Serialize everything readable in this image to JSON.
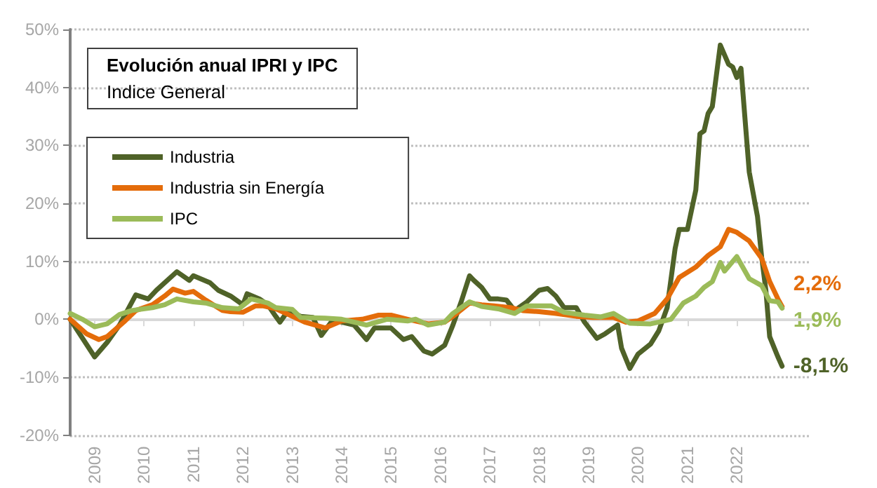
{
  "chart_data": {
    "type": "line",
    "title": "Evolución anual IPRI y IPC",
    "subtitle": "Indice General",
    "xlim": [
      "2009-01",
      "2024-01"
    ],
    "xticks": [
      {
        "value": "2009-07",
        "label": "2009"
      },
      {
        "value": "2010-07",
        "label": "2010"
      },
      {
        "value": "2011-07",
        "label": "2011"
      },
      {
        "value": "2012-07",
        "label": "2012"
      },
      {
        "value": "2013-07",
        "label": "2013"
      },
      {
        "value": "2014-07",
        "label": "2014"
      },
      {
        "value": "2015-07",
        "label": "2015"
      },
      {
        "value": "2016-07",
        "label": "2016"
      },
      {
        "value": "2017-07",
        "label": "2017"
      },
      {
        "value": "2018-07",
        "label": "2018"
      },
      {
        "value": "2019-07",
        "label": "2019"
      },
      {
        "value": "2020-07",
        "label": "2020"
      },
      {
        "value": "2021-07",
        "label": "2021"
      },
      {
        "value": "2022-07",
        "label": "2022"
      }
    ],
    "ylim": [
      -20,
      50
    ],
    "yticks": [
      {
        "value": -20,
        "label": "-20%"
      },
      {
        "value": -10,
        "label": "-10%"
      },
      {
        "value": 0,
        "label": "0%"
      },
      {
        "value": 10,
        "label": "10%"
      },
      {
        "value": 20,
        "label": "20%"
      },
      {
        "value": 30,
        "label": "30%"
      },
      {
        "value": 40,
        "label": "40%"
      },
      {
        "value": 50,
        "label": "50%"
      }
    ],
    "grid": "y",
    "legend": "top left",
    "marker": "none",
    "line_style": "solid",
    "series": [
      {
        "name": "Industria",
        "color": "#4f6228",
        "x": [
          "2009-01",
          "2009-07",
          "2009-10",
          "2010-01",
          "2010-05",
          "2010-08",
          "2010-10",
          "2011-03",
          "2011-06",
          "2011-07",
          "2011-11",
          "2012-01",
          "2012-04",
          "2012-07",
          "2012-08",
          "2012-11",
          "2013-01",
          "2013-03",
          "2013-04",
          "2013-06",
          "2013-09",
          "2013-12",
          "2014-02",
          "2014-05",
          "2014-07",
          "2014-10",
          "2015-01",
          "2015-03",
          "2015-05",
          "2015-07",
          "2015-10",
          "2015-12",
          "2016-03",
          "2016-05",
          "2016-08",
          "2016-10",
          "2016-12",
          "2017-02",
          "2017-03",
          "2017-05",
          "2017-07",
          "2017-09",
          "2017-11",
          "2018-01",
          "2018-04",
          "2018-07",
          "2018-09",
          "2018-11",
          "2019-01",
          "2019-04",
          "2019-06",
          "2019-09",
          "2019-11",
          "2020-02",
          "2020-03",
          "2020-05",
          "2020-07",
          "2020-10",
          "2020-12",
          "2021-02",
          "2021-04",
          "2021-05",
          "2021-07",
          "2021-09",
          "2021-10",
          "2021-11",
          "2021-12",
          "2022-01",
          "2022-03",
          "2022-05",
          "2022-06",
          "2022-07",
          "2022-08",
          "2022-10",
          "2022-12",
          "2023-01",
          "2023-02",
          "2023-03",
          "2023-05",
          "2023-06"
        ],
        "values": [
          0,
          -6.5,
          -4,
          -1,
          4.2,
          3.5,
          5,
          8.2,
          6.7,
          7.5,
          6.3,
          5,
          4,
          2.5,
          4.4,
          3.5,
          2.5,
          0.5,
          -0.5,
          1.5,
          0.5,
          0.3,
          -2.8,
          0,
          -0.5,
          -1,
          -3.5,
          -1.5,
          -1.5,
          -1.5,
          -3.5,
          -3,
          -5.5,
          -6,
          -4.5,
          -1,
          3,
          7.5,
          6.8,
          5.5,
          3.5,
          3.5,
          3.3,
          1.5,
          3,
          5,
          5.3,
          4,
          2,
          2,
          -0.5,
          -3.3,
          -2.5,
          -1,
          -5,
          -8.5,
          -6,
          -4.3,
          -2,
          2,
          12.2,
          15.5,
          15.5,
          22.3,
          32,
          32.5,
          35.5,
          36.7,
          47.3,
          44,
          43.5,
          41.7,
          43.3,
          25.4,
          17.7,
          10.7,
          5,
          -3,
          -6.5,
          -8.1
        ]
      },
      {
        "name": "Industria sin Energía",
        "color": "#e46c0a",
        "x": [
          "2009-01",
          "2009-05",
          "2009-08",
          "2009-10",
          "2010-02",
          "2010-05",
          "2010-09",
          "2010-12",
          "2011-02",
          "2011-05",
          "2011-07",
          "2011-10",
          "2012-02",
          "2012-04",
          "2012-07",
          "2012-10",
          "2012-12",
          "2013-03",
          "2013-07",
          "2013-10",
          "2014-03",
          "2014-07",
          "2014-12",
          "2015-04",
          "2015-07",
          "2015-11",
          "2016-04",
          "2016-08",
          "2016-10",
          "2017-02",
          "2017-05",
          "2017-08",
          "2017-12",
          "2018-03",
          "2018-07",
          "2018-11",
          "2019-04",
          "2019-08",
          "2020-01",
          "2020-04",
          "2020-07",
          "2020-11",
          "2021-02",
          "2021-05",
          "2021-09",
          "2021-12",
          "2022-03",
          "2022-05",
          "2022-07",
          "2022-10",
          "2023-01",
          "2023-03",
          "2023-05",
          "2023-06"
        ],
        "values": [
          0,
          -2.5,
          -3.5,
          -3,
          -0.5,
          1.5,
          2.5,
          4,
          5.2,
          4.5,
          4.8,
          3.3,
          1.5,
          1.3,
          1.2,
          2.3,
          2.3,
          1.8,
          0.5,
          -0.5,
          -1.5,
          -0.3,
          0,
          0.7,
          0.7,
          0,
          -0.8,
          -0.5,
          0.5,
          2.8,
          2.5,
          2.3,
          2,
          1.5,
          1.3,
          1,
          0.5,
          0.3,
          0.3,
          -0.5,
          -0.3,
          1,
          3.5,
          7.2,
          9,
          11,
          12.5,
          15.5,
          15,
          13.5,
          10.5,
          6.5,
          3.5,
          2.2
        ]
      },
      {
        "name": "IPC",
        "color": "#9bbb59",
        "x": [
          "2009-01",
          "2009-04",
          "2009-07",
          "2009-10",
          "2010-01",
          "2010-04",
          "2010-09",
          "2010-12",
          "2011-03",
          "2011-07",
          "2011-10",
          "2012-02",
          "2012-06",
          "2012-09",
          "2013-01",
          "2013-03",
          "2013-07",
          "2013-09",
          "2014-03",
          "2014-07",
          "2015-01",
          "2015-06",
          "2015-11",
          "2016-01",
          "2016-04",
          "2016-08",
          "2016-10",
          "2017-02",
          "2017-05",
          "2017-09",
          "2018-01",
          "2018-04",
          "2018-10",
          "2019-01",
          "2019-06",
          "2019-10",
          "2020-01",
          "2020-05",
          "2020-10",
          "2020-12",
          "2021-03",
          "2021-06",
          "2021-09",
          "2021-11",
          "2022-01",
          "2022-03",
          "2022-04",
          "2022-07",
          "2022-10",
          "2023-01",
          "2023-03",
          "2023-05",
          "2023-06"
        ],
        "values": [
          1,
          0,
          -1.3,
          -0.8,
          0.8,
          1.5,
          2,
          2.5,
          3.5,
          3,
          2.8,
          2,
          1.8,
          3.5,
          2.8,
          2,
          1.7,
          0.3,
          0.2,
          0,
          -1,
          0,
          -0.3,
          0,
          -1,
          -0.5,
          1,
          3,
          2.2,
          1.8,
          1,
          2.3,
          2.3,
          1.2,
          0.7,
          0.4,
          1,
          -0.7,
          -0.8,
          -0.5,
          0,
          2.8,
          4,
          5.5,
          6.5,
          9.8,
          8.3,
          10.8,
          7,
          5.8,
          3.2,
          3,
          1.9
        ]
      }
    ],
    "annotations": [
      {
        "text": "2,2%",
        "x": "2023-06",
        "y": 2.2
      },
      {
        "text": "1,9%",
        "x": "2023-06",
        "y": 1.9
      },
      {
        "text": "-8,1%",
        "x": "2023-06",
        "y": -8.1
      }
    ]
  }
}
